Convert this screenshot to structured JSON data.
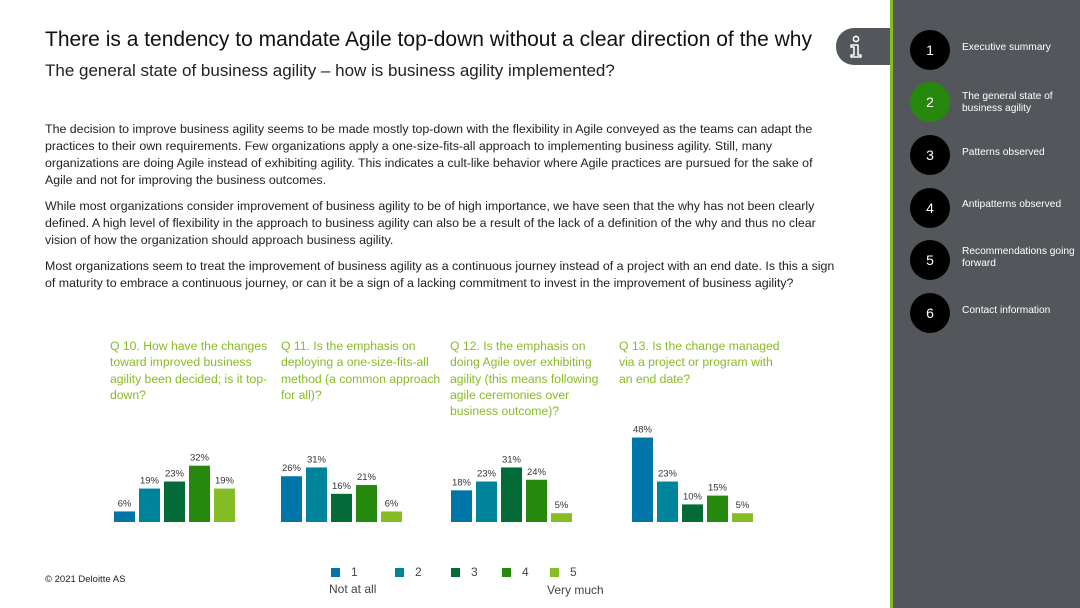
{
  "header": {
    "title": "There is a tendency to mandate Agile top-down without a clear direction of the why",
    "subtitle": "The general state of business agility – how is business agility implemented?"
  },
  "info_icon": "info-icon",
  "body": {
    "paragraphs": [
      "The decision to improve business agility seems to be made mostly top-down with the flexibility in Agile conveyed as the teams can adapt the practices to their own requirements. Few organizations apply a one-size-fits-all approach to implementing business agility. Still, many organizations are doing Agile instead of exhibiting agility. This indicates a cult-like behavior where Agile practices are pursued for the sake of Agile and not for improving the business outcomes.",
      "While most organizations consider improvement of business agility to be of high importance, we have seen that the why has not been clearly defined. A high level of flexibility in the approach to business agility can also be a result of the lack of a definition of the why and thus no clear vision of how the organization should approach business agility.",
      "Most organizations seem to treat the improvement of business agility as a continuous journey instead of a project with an end date. Is this a sign of maturity to embrace a continuous journey, or can it be a sign of a lacking commitment to invest in the improvement of business agility?"
    ]
  },
  "chart_data": [
    {
      "type": "bar",
      "title": "Q 10. How have the changes toward improved business agility been decided; is it top-down?",
      "categories": [
        "1",
        "2",
        "3",
        "4",
        "5"
      ],
      "values": [
        6,
        19,
        23,
        32,
        19
      ],
      "ylim": [
        0,
        50
      ]
    },
    {
      "type": "bar",
      "title": "Q 11. Is the emphasis on deploying a one-size-fits-all method (a common approach for all)?",
      "categories": [
        "1",
        "2",
        "3",
        "4",
        "5"
      ],
      "values": [
        26,
        31,
        16,
        21,
        6
      ],
      "ylim": [
        0,
        50
      ]
    },
    {
      "type": "bar",
      "title": "Q 12. Is the emphasis on doing Agile over exhibiting agility (this means following agile ceremonies over business outcome)?",
      "categories": [
        "1",
        "2",
        "3",
        "4",
        "5"
      ],
      "values": [
        18,
        23,
        31,
        24,
        5
      ],
      "ylim": [
        0,
        50
      ]
    },
    {
      "type": "bar",
      "title": "Q 13. Is the change managed via a project or program with an end date?",
      "categories": [
        "1",
        "2",
        "3",
        "4",
        "5"
      ],
      "values": [
        48,
        23,
        10,
        15,
        5
      ],
      "ylim": [
        0,
        50
      ]
    }
  ],
  "question_lines": [
    [
      "Q 10. How have the changes",
      "toward improved business",
      "agility been decided; is it top-",
      "down?"
    ],
    [
      "Q 11. Is the emphasis on",
      "deploying a one-size-fits-all",
      "method (a common approach",
      "for all)?"
    ],
    [
      "Q 12. Is the emphasis on",
      "doing Agile over exhibiting",
      "agility (this means following",
      "agile ceremonies over",
      "business outcome)?"
    ],
    [
      "Q 13. Is the change managed",
      "via a project or program with",
      "an end date?"
    ]
  ],
  "colors": {
    "scale": [
      "#0076a8",
      "#00849c",
      "#046a38",
      "#26890d",
      "#86bc25"
    ],
    "accent": "#86bc25",
    "sidebar": "#53565a"
  },
  "legend": {
    "items": [
      "1",
      "2",
      "3",
      "4",
      "5"
    ],
    "low_label": "Not at all",
    "high_label": "Very much"
  },
  "footer": {
    "copyright": "© 2021 Deloitte AS"
  },
  "sidebar": {
    "items": [
      {
        "number": "1",
        "label": "Executive summary",
        "active": false
      },
      {
        "number": "2",
        "label": "The general state of business agility",
        "active": true
      },
      {
        "number": "3",
        "label": "Patterns observed",
        "active": false
      },
      {
        "number": "4",
        "label": "Antipatterns observed",
        "active": false
      },
      {
        "number": "5",
        "label": "Recommendations going forward",
        "active": false
      },
      {
        "number": "6",
        "label": "Contact information",
        "active": false
      }
    ]
  }
}
